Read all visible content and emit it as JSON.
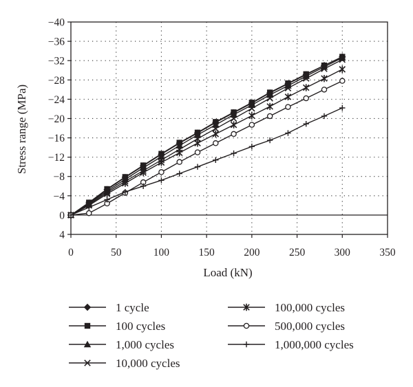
{
  "chart_data": {
    "type": "line",
    "xlabel": "Load (kN)",
    "ylabel": "Stress range (MPa)",
    "xlim": [
      0,
      350
    ],
    "ylim": [
      4,
      -40
    ],
    "y_axis_inverted": true,
    "x_ticks": [
      0,
      50,
      100,
      150,
      200,
      250,
      300,
      350
    ],
    "y_ticks": [
      -40,
      -36,
      -32,
      -28,
      -24,
      -20,
      -16,
      -12,
      -8,
      -4,
      0,
      4
    ],
    "grid": "dotted",
    "legend_position": "bottom",
    "x": [
      0,
      20,
      40,
      60,
      80,
      100,
      120,
      140,
      160,
      180,
      200,
      220,
      240,
      260,
      280,
      300
    ],
    "series": [
      {
        "name": "1 cycle",
        "marker": "diamond",
        "values": [
          0,
          -2.5,
          -5.3,
          -7.8,
          -10.2,
          -12.6,
          -14.9,
          -17.0,
          -19.2,
          -21.2,
          -23.2,
          -25.3,
          -27.2,
          -29.1,
          -31.0,
          -32.8
        ]
      },
      {
        "name": "100 cycles",
        "marker": "square",
        "values": [
          0,
          -2.6,
          -5.4,
          -7.9,
          -10.3,
          -12.7,
          -15.0,
          -17.1,
          -19.3,
          -21.3,
          -23.3,
          -25.4,
          -27.3,
          -29.2,
          -31.0,
          -32.8
        ]
      },
      {
        "name": "1,000 cycles",
        "marker": "triangle",
        "values": [
          0,
          -2.4,
          -5.0,
          -7.4,
          -9.8,
          -12.1,
          -14.4,
          -16.6,
          -18.7,
          -20.8,
          -22.8,
          -24.9,
          -26.8,
          -28.8,
          -30.7,
          -32.6
        ]
      },
      {
        "name": "10,000 cycles",
        "marker": "x",
        "values": [
          0,
          -2.2,
          -4.7,
          -7.0,
          -9.2,
          -11.4,
          -13.6,
          -15.8,
          -17.9,
          -20.0,
          -22.1,
          -24.2,
          -26.3,
          -28.3,
          -30.3,
          -32.2
        ]
      },
      {
        "name": "100,000 cycles",
        "marker": "asterisk",
        "values": [
          0,
          -2.0,
          -4.4,
          -6.6,
          -8.8,
          -10.9,
          -12.9,
          -14.9,
          -16.8,
          -18.7,
          -20.6,
          -22.5,
          -24.5,
          -26.4,
          -28.3,
          -30.2
        ]
      },
      {
        "name": "500,000 cycles",
        "marker": "circle",
        "values": [
          0,
          -0.4,
          -2.4,
          -4.6,
          -6.8,
          -8.9,
          -11.0,
          -13.0,
          -14.9,
          -16.8,
          -18.7,
          -20.5,
          -22.4,
          -24.2,
          -26.0,
          -27.8
        ]
      },
      {
        "name": "1,000,000 cycles",
        "marker": "plus",
        "values": [
          0,
          -1.6,
          -3.2,
          -4.8,
          -6.0,
          -7.2,
          -8.6,
          -10.0,
          -11.4,
          -12.8,
          -14.2,
          -15.5,
          -17.0,
          -18.9,
          -20.5,
          -22.2
        ]
      }
    ]
  }
}
